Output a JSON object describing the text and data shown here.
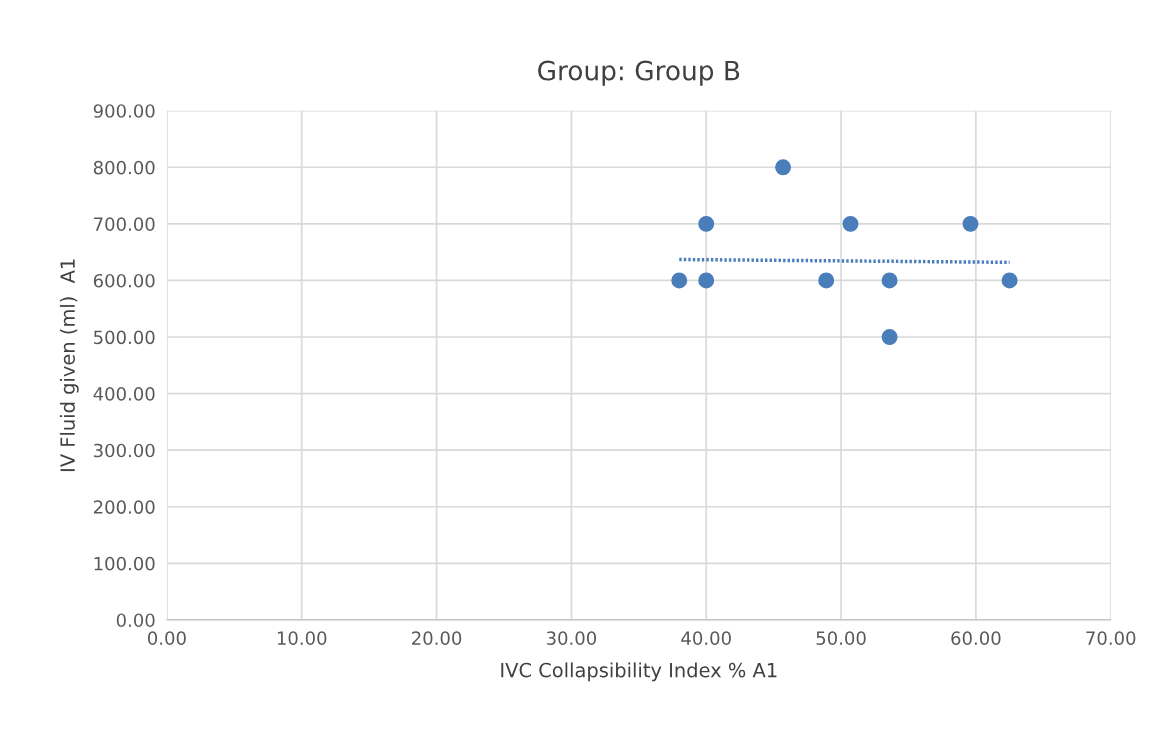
{
  "chart_data": {
    "type": "scatter",
    "title": "Group: Group B",
    "xlabel": "IVC Collapsibility Index % A1",
    "ylabel": "IV Fluid given (ml)  A1",
    "series": [
      {
        "color": "#4a7ebb",
        "x": [
          38,
          40,
          40,
          45.7,
          48.9,
          50.7,
          53.6,
          53.6,
          59.6,
          62.5
        ],
        "values": [
          600,
          700,
          600,
          800,
          600,
          700,
          600,
          500,
          700,
          600
        ],
        "marker": "circle"
      },
      {
        "type": "line",
        "color": "#4a7ebb",
        "x": [
          38,
          62.5
        ],
        "values": [
          637,
          632
        ],
        "line_style": "dotted",
        "marker": "none"
      }
    ],
    "xlim": [
      0,
      70
    ],
    "xticks": [
      {
        "value": 0,
        "label": "0.00"
      },
      {
        "value": 10,
        "label": "10.00"
      },
      {
        "value": 20,
        "label": "20.00"
      },
      {
        "value": 30,
        "label": "30.00"
      },
      {
        "value": 40,
        "label": "40.00"
      },
      {
        "value": 50,
        "label": "50.00"
      },
      {
        "value": 60,
        "label": "60.00"
      },
      {
        "value": 70,
        "label": "70.00"
      }
    ],
    "ylim": [
      0,
      900
    ],
    "yticks": [
      {
        "value": 0,
        "label": "0.00"
      },
      {
        "value": 100,
        "label": "100.00"
      },
      {
        "value": 200,
        "label": "200.00"
      },
      {
        "value": 300,
        "label": "300.00"
      },
      {
        "value": 400,
        "label": "400.00"
      },
      {
        "value": 500,
        "label": "500.00"
      },
      {
        "value": 600,
        "label": "600.00"
      },
      {
        "value": 700,
        "label": "700.00"
      },
      {
        "value": 800,
        "label": "800.00"
      },
      {
        "value": 900,
        "label": "900.00"
      }
    ],
    "grid": true,
    "legend": false
  }
}
